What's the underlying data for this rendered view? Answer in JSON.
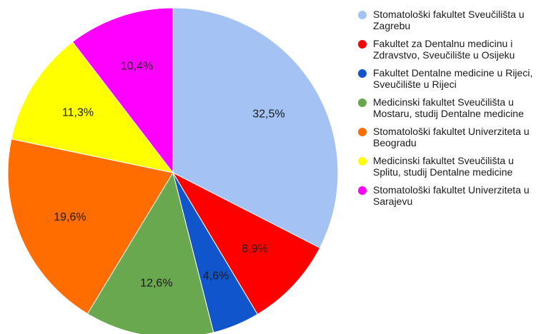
{
  "chart_data": {
    "type": "pie",
    "start_angle_deg": 0,
    "direction": "clockwise",
    "slices": [
      {
        "label": "Stomatološki fakultet Sveučilišta u Zagrebu",
        "value": 32.5,
        "display": "32,5%",
        "color": "#A4C2F4"
      },
      {
        "label": "Fakultet za Dentalnu medicinu i Zdravstvo, Sveučilište u Osijeku",
        "value": 8.9,
        "display": "8,9%",
        "color": "#FF0000"
      },
      {
        "label": "Fakultet Dentalne medicine u Rijeci, Sveučilište u Rijeci",
        "value": 4.6,
        "display": "4,6%",
        "color": "#1155CC"
      },
      {
        "label": "Medicinski fakultet Sveučilišta u Mostaru, studij Dentalne medicine",
        "value": 12.6,
        "display": "12,6%",
        "color": "#6AA84F"
      },
      {
        "label": "Stomatološki fakultet Univerziteta u Beogradu",
        "value": 19.6,
        "display": "19,6%",
        "color": "#FF6D01"
      },
      {
        "label": "Medicinski fakultet Sveučilišta u Splitu, studij Dentalne medicine",
        "value": 11.3,
        "display": "11,3%",
        "color": "#FFFF00"
      },
      {
        "label": "Stomatološki fakultet Univerziteta u Sarajevu",
        "value": 10.4,
        "display": "10,4%",
        "color": "#FF00FF"
      }
    ],
    "legend_position": "right"
  },
  "legend": {
    "items": [
      {
        "text": "Stomatološki fakultet Sveučilišta u\nZagrebu",
        "color": "#A4C2F4"
      },
      {
        "text": "Fakultet za Dentalnu medicinu i\nZdravstvo, Sveučilište u Osijeku",
        "color": "#FF0000"
      },
      {
        "text": "Fakultet Dentalne medicine u Rijeci,\nSveučilište u Rijeci",
        "color": "#1155CC"
      },
      {
        "text": "Medicinski fakultet Sveučilišta u\nMostaru, studij Dentalne medicine",
        "color": "#6AA84F"
      },
      {
        "text": "Stomatološki fakultet Univerziteta u\nBeogradu",
        "color": "#FF6D01"
      },
      {
        "text": "Medicinski fakultet Sveučilišta u\nSplitu, studij Dentalne medicine",
        "color": "#FFFF00"
      },
      {
        "text": "Stomatološki fakultet Univerziteta u\nSarajevu",
        "color": "#FF00FF"
      }
    ]
  }
}
